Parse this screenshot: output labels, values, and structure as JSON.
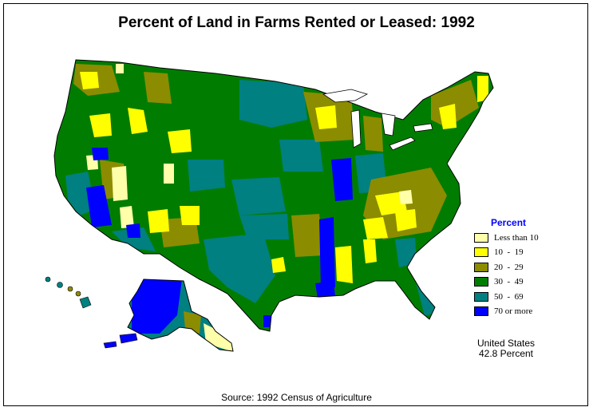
{
  "title": "Percent of Land in Farms Rented or Leased:  1992",
  "legend": {
    "title": "Percent",
    "items": [
      {
        "label": "Less than 10",
        "color": "#ffffaa"
      },
      {
        "label": "10  -  19",
        "color": "#ffff00"
      },
      {
        "label": "20  -  29",
        "color": "#8c8c00"
      },
      {
        "label": "30  -  49",
        "color": "#007d00"
      },
      {
        "label": "50  -  69",
        "color": "#008080"
      },
      {
        "label": "70 or more",
        "color": "#0000ff"
      }
    ]
  },
  "summary": {
    "line1": "United States",
    "line2": "42.8 Percent"
  },
  "source": "Source:  1992 Census of Agriculture",
  "colors": {
    "dominant": "#007d00",
    "outline": "#000000",
    "background": "#ffffff"
  }
}
